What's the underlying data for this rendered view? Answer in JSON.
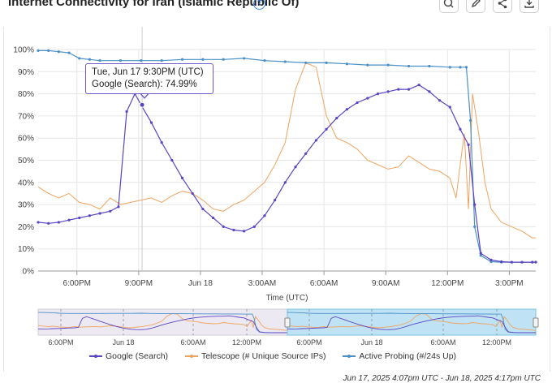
{
  "header": {
    "title": "Internet Connectivity for Iran (Islamic Republic Of)",
    "help_icon": "help-circle-icon",
    "toolbar_icons": [
      "zoom-reset-icon",
      "edit-icon",
      "share-icon",
      "download-icon"
    ]
  },
  "tooltip": {
    "line1": "Tue, Jun 17 9:30PM (UTC)",
    "line2": "Google (Search): 74.99%"
  },
  "time_range": "Jun 17, 2025 4:07pm UTC - Jun 18, 2025 4:17pm UTC",
  "chart_data": {
    "type": "line",
    "xlabel": "Time (UTC)",
    "ylabel": "",
    "x_unit": "hours after Jun 17 4:07PM UTC",
    "xlim": [
      0,
      24.17
    ],
    "ylim": [
      0,
      100
    ],
    "y_ticks": [
      "0%",
      "10%",
      "20%",
      "30%",
      "40%",
      "50%",
      "60%",
      "70%",
      "80%",
      "90%",
      "100%"
    ],
    "x_ticks": [
      "6:00PM",
      "9:00PM",
      "Jun 18",
      "3:00AM",
      "6:00AM",
      "9:00AM",
      "12:00PM",
      "3:00PM"
    ],
    "x_tick_hours": [
      1.883,
      4.883,
      7.883,
      10.883,
      13.883,
      16.883,
      19.883,
      22.883
    ],
    "navigator_ticks": [
      "6:00PM",
      "Jun 18",
      "6:00AM",
      "12:00PM",
      "6:00PM",
      "Jun 18",
      "6:00AM",
      "12:00PM"
    ],
    "series": [
      {
        "name": "Google (Search)",
        "color": "#5b44c4",
        "x": [
          0,
          0.5,
          1,
          1.5,
          2,
          2.5,
          3,
          3.5,
          3.9,
          4.3,
          4.7,
          5.0,
          5.5,
          6,
          6.5,
          7,
          7.5,
          8,
          8.5,
          9,
          9.5,
          10,
          10.5,
          11,
          11.5,
          12,
          12.5,
          13,
          13.5,
          14,
          14.5,
          15,
          15.5,
          16,
          16.5,
          17,
          17.5,
          18,
          18.5,
          19,
          19.5,
          20,
          20.5,
          20.9,
          21.2,
          21.5,
          22,
          22.5,
          23,
          23.5,
          24,
          24.17
        ],
        "y": [
          22,
          21.5,
          22,
          23,
          24,
          25,
          26,
          27,
          29,
          72,
          80,
          75,
          67,
          58,
          50,
          42,
          35,
          28,
          24,
          20,
          18.5,
          18,
          20,
          25,
          32,
          40,
          47,
          53,
          59,
          64,
          69,
          73,
          76,
          78,
          80,
          81,
          82,
          82,
          84,
          81,
          77,
          74,
          64,
          57,
          30,
          8,
          5,
          4.2,
          4,
          4,
          4,
          4
        ]
      },
      {
        "name": "Telescope (# Unique Source IPs)",
        "color": "#f0a35e",
        "x": [
          0,
          0.5,
          1,
          1.5,
          2,
          2.5,
          3,
          3.5,
          4,
          4.5,
          5,
          5.5,
          6,
          6.5,
          7,
          7.5,
          8,
          8.5,
          9,
          9.5,
          10,
          10.5,
          11,
          11.5,
          12,
          12.5,
          13,
          13.5,
          14,
          14.5,
          15,
          15.5,
          16,
          16.5,
          17,
          17.5,
          18,
          18.5,
          19,
          19.5,
          20,
          20.3,
          20.5,
          20.7,
          20.9,
          21.1,
          21.4,
          21.7,
          22,
          22.5,
          23,
          23.5,
          24,
          24.17
        ],
        "y": [
          38,
          35,
          33,
          35,
          31,
          30,
          28,
          33,
          30,
          31,
          32,
          33,
          31,
          34,
          36,
          35,
          32,
          28,
          27,
          30,
          32,
          36,
          40,
          48,
          58,
          82,
          94,
          92,
          70,
          60,
          58,
          55,
          50,
          48,
          46,
          47,
          52,
          49,
          46,
          45,
          42,
          33,
          48,
          62,
          28,
          80,
          62,
          40,
          28,
          22,
          20,
          18,
          15,
          15
        ]
      },
      {
        "name": "Active Probing (#/24s Up)",
        "color": "#4a90c8",
        "x": [
          0,
          0.5,
          1,
          1.5,
          2,
          2.5,
          3,
          4,
          5,
          6,
          7,
          8,
          9,
          10,
          11,
          12,
          13,
          14,
          15,
          16,
          17,
          18,
          19,
          20,
          20.5,
          20.8,
          21.0,
          21.2,
          21.5,
          22,
          22.5,
          23,
          23.5,
          24,
          24.17
        ],
        "y": [
          99.5,
          99.5,
          99,
          98.5,
          96,
          95.5,
          95,
          95,
          95,
          95,
          95.5,
          95.5,
          95.5,
          96,
          95,
          94.5,
          94,
          94,
          93.5,
          93,
          93,
          92.5,
          92.5,
          92,
          92,
          92,
          68,
          20,
          7,
          4.2,
          4,
          4,
          4,
          4,
          4
        ]
      }
    ],
    "hover": {
      "series": "Google (Search)",
      "x_hours": 5.05,
      "value": 74.99
    },
    "grid": true,
    "legend_position": "bottom"
  }
}
